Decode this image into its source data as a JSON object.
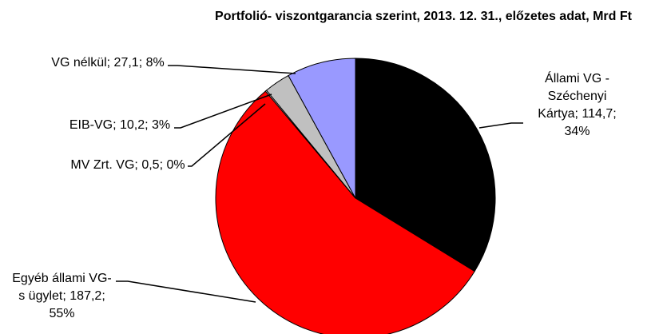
{
  "chart_data": {
    "type": "pie",
    "title": "Portfolió- viszontgarancia szerint, 2013. 12. 31.,  előzetes adat, Mrd Ft",
    "categories": [
      "Állami VG - Széchenyi Kártya",
      "Egyéb állami VG-s ügylet",
      "MV Zrt. VG",
      "EIB-VG",
      "VG nélkül"
    ],
    "values": [
      114.7,
      187.2,
      0.5,
      10.2,
      27.1
    ],
    "value_labels": [
      "114,7",
      "187,2",
      "0,5",
      "10,2",
      "27,1"
    ],
    "percents": [
      34,
      55,
      0,
      3,
      8
    ],
    "percent_labels": [
      "34%",
      "55%",
      "0%",
      "3%",
      "8%"
    ],
    "label_separator": "; ",
    "colors": [
      "#000000",
      "#ff0000",
      "#ffffff",
      "#c0c0c0",
      "#9999ff"
    ]
  }
}
